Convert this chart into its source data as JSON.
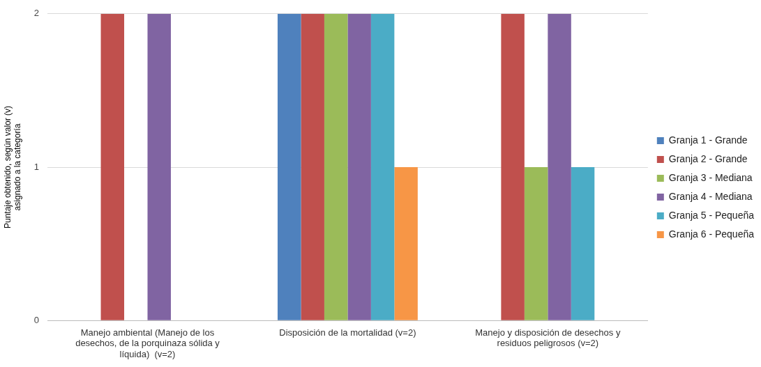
{
  "chart_data": {
    "type": "bar",
    "ylabel": "Puntaje obtenido, según valor (v) asignado a la categoría",
    "categories": [
      "Manejo ambiental (Manejo de los desechos, de la porquinaza sólida y líquida)  (v=2)",
      "Disposición de la mortalidad (v=2)",
      "Manejo y disposición de desechos y residuos peligrosos (v=2)"
    ],
    "series": [
      {
        "name": "Granja 1 - Grande",
        "color": "#4f81bd",
        "values": [
          0,
          2,
          0
        ]
      },
      {
        "name": "Granja 2 - Grande",
        "color": "#c0504d",
        "values": [
          2,
          2,
          2
        ]
      },
      {
        "name": "Granja 3 - Mediana",
        "color": "#9bbb59",
        "values": [
          0,
          2,
          1
        ]
      },
      {
        "name": "Granja 4 - Mediana",
        "color": "#8064a2",
        "values": [
          2,
          2,
          2
        ]
      },
      {
        "name": "Granja 5 - Pequeña",
        "color": "#4bacc6",
        "values": [
          0,
          2,
          1
        ]
      },
      {
        "name": "Granja 6 - Pequeña",
        "color": "#f79646",
        "values": [
          0,
          1,
          0
        ]
      }
    ],
    "ylim": [
      0,
      2
    ],
    "yticks": [
      0,
      1,
      2
    ],
    "grid": "y",
    "legend": "right"
  }
}
